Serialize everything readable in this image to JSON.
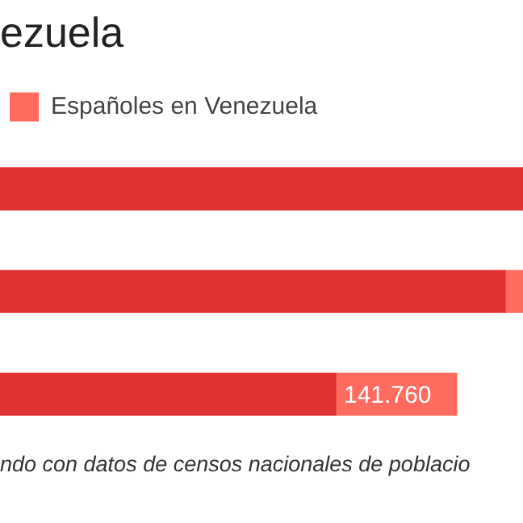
{
  "chart_data": {
    "type": "bar",
    "orientation": "horizontal",
    "stacked": true,
    "xlim": [
      0,
      612400
    ],
    "tick_labels": false,
    "title": "ezuela",
    "legend": "top left",
    "categories": [
      null,
      null,
      null
    ],
    "series": [
      {
        "color": "#e03232",
        "values": [
          612400,
          591600,
          393100
        ]
      },
      {
        "name": "Españoles en Venezuela",
        "color": "#ff6b5e",
        "values": [
          0,
          20800,
          141760
        ],
        "value_labels": [
          null,
          null,
          "141.760"
        ]
      }
    ],
    "annotations": [
      "ndo con datos de censos nacionales de poblacio"
    ]
  }
}
